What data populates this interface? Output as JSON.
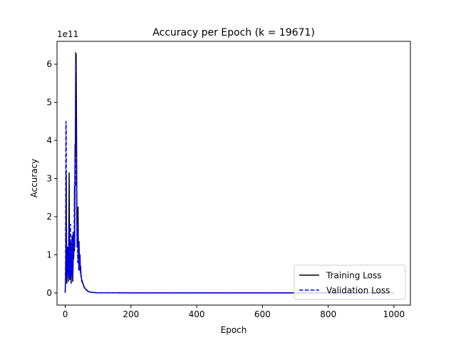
{
  "chart_data": {
    "type": "line",
    "title": "Accuracy per Epoch (k = 19671)",
    "xlabel": "Epoch",
    "ylabel": "Accuracy",
    "y_offset_text": "1e11",
    "xlim": [
      -25,
      1050
    ],
    "ylim": [
      -0.32,
      6.6
    ],
    "x_ticks": [
      0,
      200,
      400,
      600,
      800,
      1000
    ],
    "y_ticks": [
      0,
      1,
      2,
      3,
      4,
      5,
      6
    ],
    "grid": false,
    "legend": {
      "location": "lower right",
      "entries": [
        "Training Loss",
        "Validation Loss"
      ]
    },
    "series": [
      {
        "name": "Training Loss",
        "color": "#000000",
        "style": "solid",
        "x": [
          0,
          1,
          2,
          3,
          4,
          5,
          6,
          7,
          8,
          9,
          10,
          11,
          12,
          13,
          14,
          15,
          16,
          17,
          18,
          19,
          20,
          21,
          22,
          23,
          24,
          25,
          26,
          27,
          28,
          29,
          30,
          31,
          32,
          33,
          34,
          35,
          36,
          37,
          38,
          39,
          40,
          41,
          42,
          43,
          44,
          45,
          46,
          47,
          48,
          49,
          50,
          52,
          55,
          58,
          62,
          66,
          70,
          75,
          80,
          90,
          100,
          120,
          150,
          200,
          300,
          400,
          500,
          600,
          700,
          800,
          900,
          1000
        ],
        "y": [
          0.02,
          0.35,
          1.0,
          3.1,
          0.9,
          0.25,
          0.55,
          1.2,
          0.8,
          0.6,
          0.4,
          1.5,
          3.15,
          1.0,
          0.35,
          0.7,
          1.4,
          0.5,
          0.25,
          0.6,
          0.9,
          1.5,
          0.5,
          0.3,
          0.7,
          1.3,
          0.9,
          1.6,
          1.1,
          2.5,
          3.9,
          3.6,
          6.3,
          6.25,
          5.2,
          3.0,
          1.5,
          2.2,
          1.2,
          2.25,
          1.1,
          0.8,
          1.35,
          0.9,
          0.7,
          1.0,
          0.55,
          0.7,
          0.45,
          0.4,
          0.35,
          0.3,
          0.22,
          0.15,
          0.1,
          0.07,
          0.04,
          0.025,
          0.015,
          0.008,
          0.004,
          0.002,
          0.001,
          0.0,
          0.0,
          0.0,
          0.0,
          0.0,
          0.0,
          0.0,
          0.0,
          0.0
        ]
      },
      {
        "name": "Validation Loss",
        "color": "#0000ff",
        "style": "dashed",
        "x": [
          0,
          1,
          2,
          3,
          4,
          5,
          6,
          7,
          8,
          9,
          10,
          11,
          12,
          13,
          14,
          15,
          16,
          17,
          18,
          19,
          20,
          21,
          22,
          23,
          24,
          25,
          26,
          27,
          28,
          29,
          30,
          31,
          32,
          33,
          34,
          35,
          36,
          37,
          38,
          39,
          40,
          41,
          42,
          43,
          44,
          45,
          46,
          47,
          48,
          49,
          50,
          52,
          55,
          58,
          62,
          66,
          70,
          75,
          80,
          90,
          100,
          120,
          150,
          200,
          300,
          400,
          500,
          600,
          700,
          800,
          900,
          1000
        ],
        "y": [
          0.0,
          0.6,
          4.5,
          4.3,
          1.0,
          0.4,
          0.9,
          0.5,
          1.2,
          0.7,
          0.3,
          1.8,
          1.0,
          0.4,
          1.2,
          0.6,
          1.8,
          0.45,
          0.3,
          1.3,
          0.5,
          1.4,
          0.6,
          0.4,
          1.6,
          1.0,
          1.5,
          1.3,
          2.8,
          1.2,
          3.5,
          2.8,
          6.05,
          4.1,
          3.4,
          2.0,
          1.2,
          1.8,
          0.8,
          1.6,
          1.0,
          0.6,
          1.3,
          0.8,
          0.6,
          0.9,
          0.5,
          0.6,
          0.4,
          0.45,
          0.3,
          0.28,
          0.2,
          0.14,
          0.09,
          0.06,
          0.035,
          0.02,
          0.012,
          0.007,
          0.003,
          0.002,
          0.001,
          0.0,
          0.0,
          0.0,
          0.0,
          0.0,
          0.0,
          0.0,
          0.0,
          0.0
        ]
      }
    ]
  }
}
